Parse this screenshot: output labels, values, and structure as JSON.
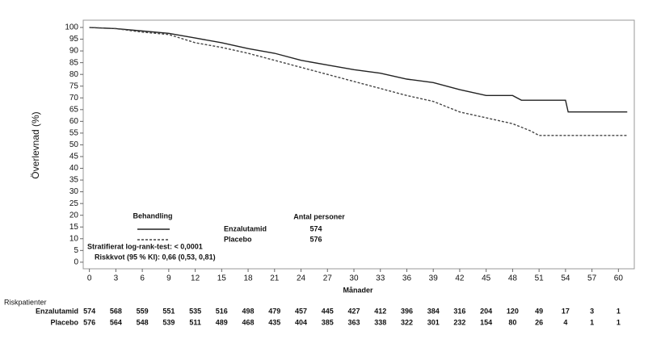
{
  "chart_data": {
    "type": "line",
    "y_label": "Överlevnad (%)",
    "x_label": "Månader",
    "xlim": [
      -0.7,
      61.8
    ],
    "ylim": [
      -2.8,
      103.1
    ],
    "xticks": [
      0,
      3,
      6,
      9,
      12,
      15,
      18,
      21,
      24,
      27,
      30,
      33,
      36,
      39,
      42,
      45,
      48,
      51,
      54,
      57,
      60
    ],
    "yticks": [
      0,
      5,
      10,
      15,
      20,
      25,
      30,
      35,
      40,
      45,
      50,
      55,
      60,
      65,
      70,
      75,
      80,
      85,
      90,
      95,
      100
    ],
    "series": [
      {
        "name": "Enzalutamid",
        "color": "#222222",
        "line_style": "solid",
        "x": [
          0,
          3,
          6,
          9,
          12,
          15,
          18,
          21,
          24,
          27,
          30,
          33,
          36,
          39,
          42,
          45,
          48,
          49,
          54,
          54.3,
          61
        ],
        "values": [
          100,
          99.5,
          98.5,
          97.5,
          95.5,
          93.5,
          91,
          89,
          86,
          84,
          82,
          80.5,
          78,
          76.5,
          73.5,
          71,
          71,
          69,
          69,
          64,
          64
        ]
      },
      {
        "name": "Placebo",
        "color": "#444444",
        "line_style": "dashed",
        "x": [
          0,
          3,
          6,
          9,
          12,
          15,
          18,
          21,
          24,
          27,
          30,
          33,
          36,
          39,
          42,
          45,
          48,
          50,
          51,
          61
        ],
        "values": [
          100,
          99.5,
          98,
          97,
          93.5,
          91.5,
          89,
          86,
          83,
          80,
          77,
          74,
          71,
          68.5,
          64,
          61.5,
          59,
          56,
          54,
          54
        ]
      }
    ],
    "legend": {
      "title": "Behandling",
      "count_title": "Antal personer",
      "counts": [
        574,
        576
      ]
    },
    "annotations": [
      "Stratifierat log-rank-test: < 0,0001",
      "Riskkvot (95 % KI): 0,66 (0,53, 0,81)"
    ],
    "risk_table": {
      "title": "Riskpatienter",
      "rows": [
        {
          "name": "Enzalutamid",
          "values": [
            574,
            568,
            559,
            551,
            535,
            516,
            498,
            479,
            457,
            445,
            427,
            412,
            396,
            384,
            316,
            204,
            120,
            49,
            17,
            3,
            1
          ]
        },
        {
          "name": "Placebo",
          "values": [
            576,
            564,
            548,
            539,
            511,
            489,
            468,
            435,
            404,
            385,
            363,
            338,
            322,
            301,
            232,
            154,
            80,
            26,
            4,
            1,
            1
          ]
        }
      ]
    }
  }
}
